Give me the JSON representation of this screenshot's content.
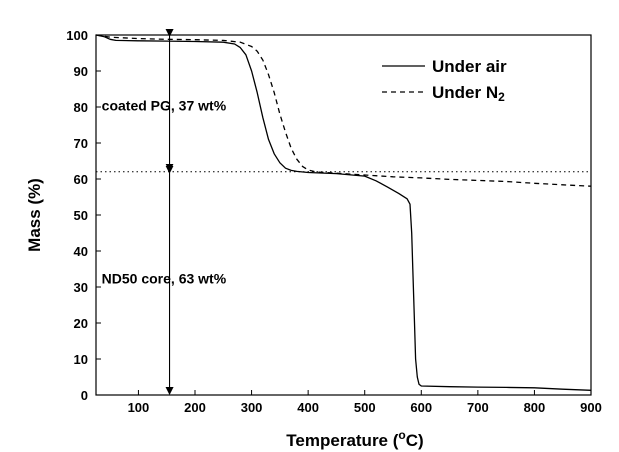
{
  "chart_data": {
    "type": "line",
    "title": "",
    "xlabel": "Temperature (",
    "xlabel_sup": "o",
    "xlabel_tail": "C)",
    "ylabel": "Mass (%)",
    "xlim": [
      25,
      900
    ],
    "ylim": [
      0,
      100
    ],
    "x_ticks": [
      100,
      200,
      300,
      400,
      500,
      600,
      700,
      800,
      900
    ],
    "y_ticks": [
      0,
      10,
      20,
      30,
      40,
      50,
      60,
      70,
      80,
      90,
      100
    ],
    "grid": false,
    "legend_position": "top-right",
    "series": [
      {
        "name": "Under air",
        "name_main": "Under air",
        "name_sub": "",
        "style": "solid",
        "color": "#000000",
        "x": [
          25,
          40,
          50,
          60,
          100,
          150,
          200,
          250,
          270,
          280,
          290,
          300,
          310,
          320,
          330,
          340,
          350,
          360,
          370,
          380,
          400,
          450,
          500,
          520,
          540,
          560,
          575,
          580,
          583,
          585,
          588,
          590,
          593,
          596,
          600,
          650,
          700,
          750,
          800,
          850,
          900
        ],
        "y": [
          100,
          99.5,
          98.8,
          98.5,
          98.4,
          98.3,
          98.2,
          98,
          97.5,
          96.5,
          94.5,
          90,
          84,
          77,
          71,
          67,
          64.5,
          63,
          62.4,
          62.1,
          61.8,
          61.5,
          60.8,
          59.5,
          57.8,
          56,
          54.5,
          53,
          45,
          35,
          20,
          10,
          5,
          3,
          2.5,
          2.3,
          2.2,
          2.1,
          2,
          1.6,
          1.3
        ]
      },
      {
        "name": "Under N2",
        "name_main": "Under N",
        "name_sub": "2",
        "style": "dashed",
        "color": "#000000",
        "x": [
          25,
          50,
          100,
          150,
          200,
          250,
          280,
          300,
          310,
          320,
          330,
          340,
          350,
          360,
          370,
          380,
          390,
          400,
          410,
          420,
          430,
          450,
          500,
          550,
          600,
          650,
          700,
          750,
          800,
          850,
          900
        ],
        "y": [
          100,
          99.4,
          99,
          98.8,
          98.7,
          98.5,
          98,
          96.8,
          95.5,
          93,
          89,
          84,
          78,
          73,
          68.5,
          65.5,
          63.5,
          62.5,
          62.1,
          61.9,
          61.8,
          61.6,
          61.1,
          60.6,
          60.3,
          59.9,
          59.6,
          59.3,
          58.8,
          58.4,
          58
        ]
      }
    ],
    "reference_lines": [
      {
        "y": 100,
        "x_from": 25,
        "x_to": 420,
        "style": "dotted"
      },
      {
        "y": 62,
        "x_from": 25,
        "x_to": 900,
        "style": "dotted"
      }
    ],
    "arrows": [
      {
        "x": 155,
        "y_from": 100,
        "y_to": 62
      },
      {
        "x": 155,
        "y_from": 62,
        "y_to": 0
      }
    ],
    "annotations": [
      {
        "text": "coated PG, 37 wt%",
        "x": 35,
        "y": 79
      },
      {
        "text": "ND50 core, 63 wt%",
        "x": 35,
        "y": 31
      }
    ]
  }
}
